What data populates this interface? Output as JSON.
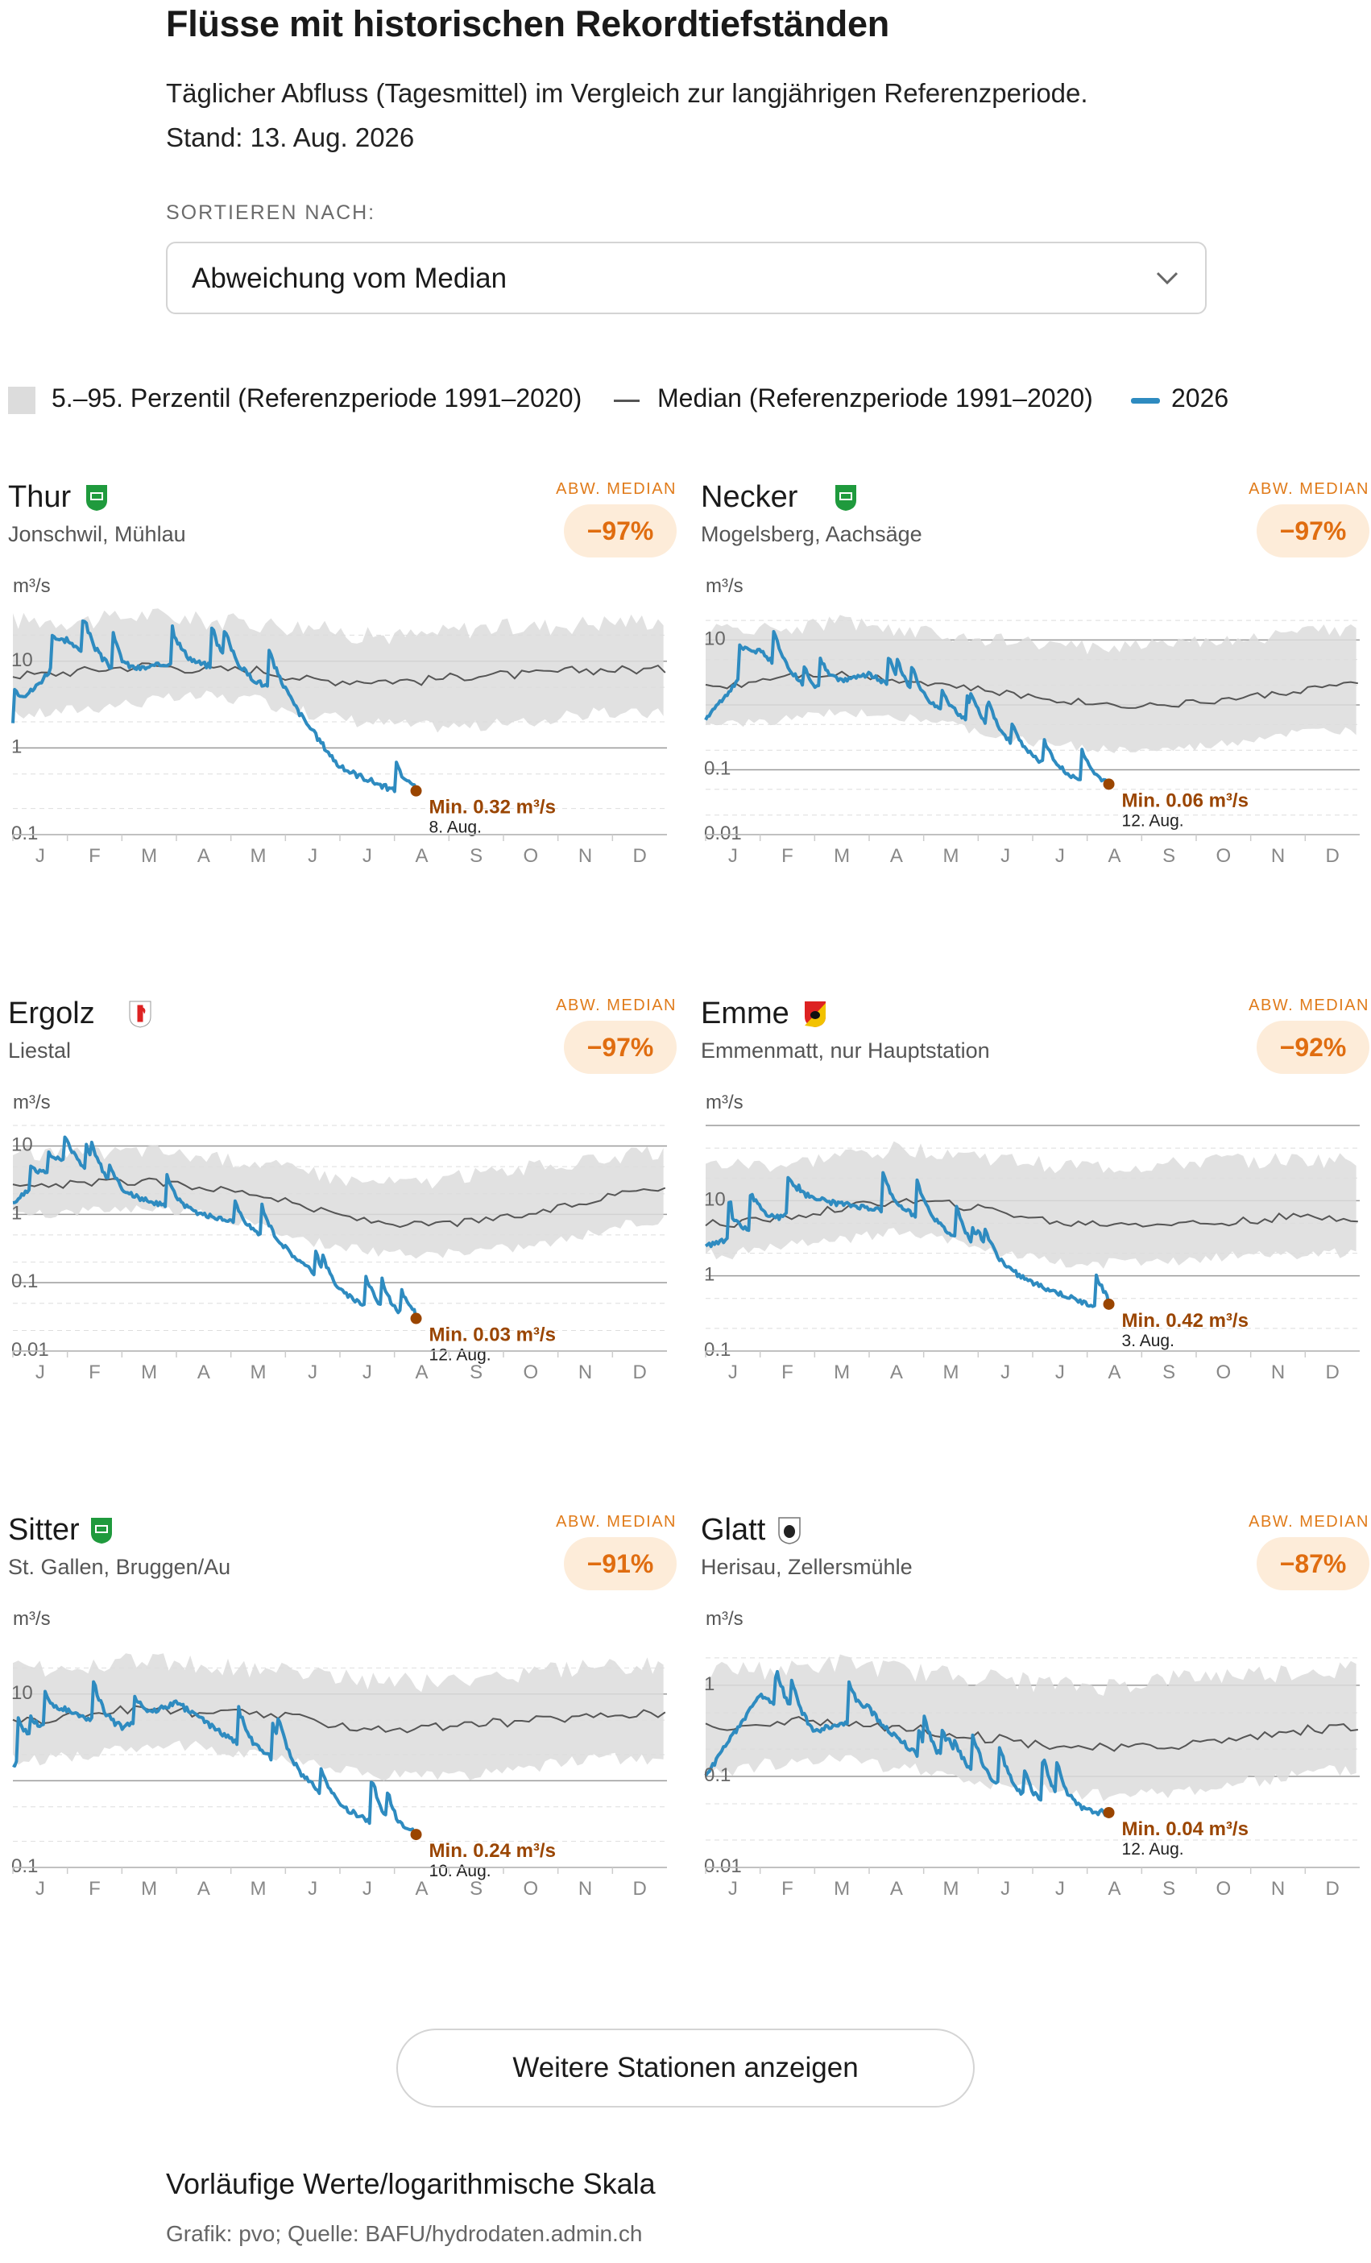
{
  "header": {
    "title": "Flüsse mit historischen Rekordtiefständen",
    "subtitle": "Täglicher Abfluss (Tagesmittel) im Vergleich zur langjährigen Referenzperiode.",
    "stand": "Stand: 13. Aug. 2026"
  },
  "sort": {
    "label": "SORTIEREN NACH:",
    "value": "Abweichung vom Median"
  },
  "legend": {
    "band": "5.–95. Perzentil (Referenzperiode 1991–2020)",
    "median": "Median (Referenzperiode 1991–2020)",
    "current": "2026"
  },
  "colors": {
    "current": "#2e8bc0",
    "median": "#555555",
    "band": "#dcdcdc",
    "min_marker": "#9a4500",
    "deviation": "#e06d10"
  },
  "deviation_label": "ABW. MEDIAN",
  "unit": "m³/s",
  "months": [
    "J",
    "F",
    "M",
    "A",
    "M",
    "J",
    "J",
    "A",
    "S",
    "O",
    "N",
    "D"
  ],
  "chart_data": [
    {
      "type": "line",
      "name": "Thur",
      "location": "Jonschwil, Mühlau",
      "canton_icon": "st-gallen-flag-icon",
      "deviation": "−97%",
      "y_scale": "log",
      "ylim": [
        0.1,
        40
      ],
      "yticks": [
        0.1,
        1,
        10
      ],
      "median": [
        7,
        8,
        9,
        8,
        8,
        6,
        6,
        6,
        7,
        7,
        8,
        8
      ],
      "p5": [
        2.5,
        3,
        3.5,
        4,
        3.5,
        2.5,
        2,
        1.8,
        1.8,
        2,
        2.5,
        2.5
      ],
      "p95": [
        30,
        30,
        35,
        30,
        28,
        25,
        20,
        20,
        25,
        25,
        28,
        30
      ],
      "current_2026": [
        2,
        15,
        7,
        10,
        8,
        4,
        0.6,
        0.32
      ],
      "min": {
        "label": "Min. 0.32 m³/s",
        "date": "8. Aug."
      }
    },
    {
      "type": "line",
      "name": "Necker",
      "location": "Mogelsberg, Aachsäge",
      "canton_icon": "st-gallen-flag-icon",
      "deviation": "−97%",
      "y_scale": "log",
      "ylim": [
        0.01,
        30
      ],
      "yticks": [
        0.01,
        0.1,
        10
      ],
      "median": [
        2,
        3,
        3,
        2.5,
        2,
        1.5,
        1.2,
        1,
        1,
        1.2,
        1.5,
        2
      ],
      "p5": [
        0.5,
        0.6,
        0.8,
        0.7,
        0.5,
        0.3,
        0.25,
        0.2,
        0.2,
        0.25,
        0.35,
        0.4
      ],
      "p95": [
        15,
        15,
        20,
        15,
        12,
        10,
        8,
        8,
        10,
        10,
        12,
        15
      ],
      "current_2026": [
        0.6,
        6,
        1.5,
        3,
        1,
        0.5,
        0.15,
        0.06
      ],
      "min": {
        "label": "Min. 0.06 m³/s",
        "date": "12. Aug."
      }
    },
    {
      "type": "line",
      "name": "Ergolz",
      "location": "Liestal",
      "canton_icon": "basel-land-flag-icon",
      "deviation": "−97%",
      "y_scale": "log",
      "ylim": [
        0.01,
        20
      ],
      "yticks": [
        0.01,
        0.1,
        1,
        10
      ],
      "median": [
        2.5,
        3,
        3,
        2.5,
        2,
        1.2,
        0.8,
        0.7,
        0.8,
        1,
        1.5,
        2.5
      ],
      "p5": [
        1,
        1.2,
        1.3,
        1,
        0.7,
        0.4,
        0.3,
        0.25,
        0.3,
        0.35,
        0.5,
        0.8
      ],
      "p95": [
        8,
        8,
        9,
        7,
        6,
        4,
        3,
        3,
        4,
        5,
        6,
        8
      ],
      "current_2026": [
        1.5,
        6,
        2,
        1.2,
        0.8,
        0.3,
        0.07,
        0.03
      ],
      "min": {
        "label": "Min. 0.03 m³/s",
        "date": "12. Aug."
      }
    },
    {
      "type": "line",
      "name": "Emme",
      "location": "Emmenmatt, nur Hauptstation",
      "canton_icon": "bern-flag-icon",
      "deviation": "−92%",
      "y_scale": "log",
      "ylim": [
        0.1,
        100
      ],
      "yticks": [
        0.1,
        1,
        10
      ],
      "median": [
        5,
        6,
        8,
        10,
        9,
        7,
        5,
        5,
        5,
        5,
        6,
        6
      ],
      "p5": [
        2,
        2.5,
        3,
        4,
        3,
        2,
        1.5,
        1.5,
        1.5,
        1.8,
        2,
        2
      ],
      "p95": [
        30,
        30,
        40,
        50,
        45,
        35,
        30,
        28,
        30,
        35,
        35,
        35
      ],
      "current_2026": [
        2.5,
        4,
        10,
        8,
        6,
        2,
        0.8,
        0.42
      ],
      "min": {
        "label": "Min. 0.42 m³/s",
        "date": "3. Aug."
      }
    },
    {
      "type": "line",
      "name": "Sitter",
      "location": "St. Gallen, Bruggen/Au",
      "canton_icon": "st-gallen-flag-icon",
      "deviation": "−91%",
      "y_scale": "log",
      "ylim": [
        0.1,
        40
      ],
      "yticks": [
        0.1,
        10
      ],
      "median": [
        5,
        6,
        7,
        6,
        6,
        5,
        4,
        4,
        4.5,
        5,
        5.5,
        6
      ],
      "p5": [
        1.8,
        2,
        2.5,
        2.5,
        2,
        1.5,
        1.2,
        1.2,
        1.2,
        1.4,
        1.8,
        1.8
      ],
      "p95": [
        20,
        22,
        25,
        22,
        20,
        18,
        15,
        14,
        16,
        18,
        20,
        22
      ],
      "current_2026": [
        1.5,
        6,
        4,
        8,
        3,
        1.5,
        0.5,
        0.24
      ],
      "min": {
        "label": "Min. 0.24 m³/s",
        "date": "10. Aug."
      }
    },
    {
      "type": "line",
      "name": "Glatt",
      "location": "Herisau, Zellersmühle",
      "canton_icon": "appenzell-ausserrhoden-flag-icon",
      "deviation": "−87%",
      "y_scale": "log",
      "ylim": [
        0.01,
        3
      ],
      "yticks": [
        0.01,
        0.1,
        1
      ],
      "median": [
        0.35,
        0.4,
        0.4,
        0.35,
        0.3,
        0.25,
        0.22,
        0.2,
        0.22,
        0.25,
        0.3,
        0.35
      ],
      "p5": [
        0.12,
        0.15,
        0.15,
        0.13,
        0.1,
        0.08,
        0.07,
        0.06,
        0.07,
        0.08,
        0.1,
        0.12
      ],
      "p95": [
        1.5,
        1.5,
        1.8,
        1.5,
        1.3,
        1.2,
        1,
        1,
        1.2,
        1.3,
        1.4,
        1.5
      ],
      "current_2026": [
        0.1,
        0.8,
        0.3,
        0.5,
        0.15,
        0.1,
        0.05,
        0.04
      ],
      "min": {
        "label": "Min. 0.04 m³/s",
        "date": "12. Aug."
      }
    }
  ],
  "more_button": "Weitere Stationen anzeigen",
  "footer": {
    "note": "Vorläufige Werte/logarithmische Skala",
    "source": "Grafik: pvo; Quelle: BAFU/hydrodaten.admin.ch"
  }
}
